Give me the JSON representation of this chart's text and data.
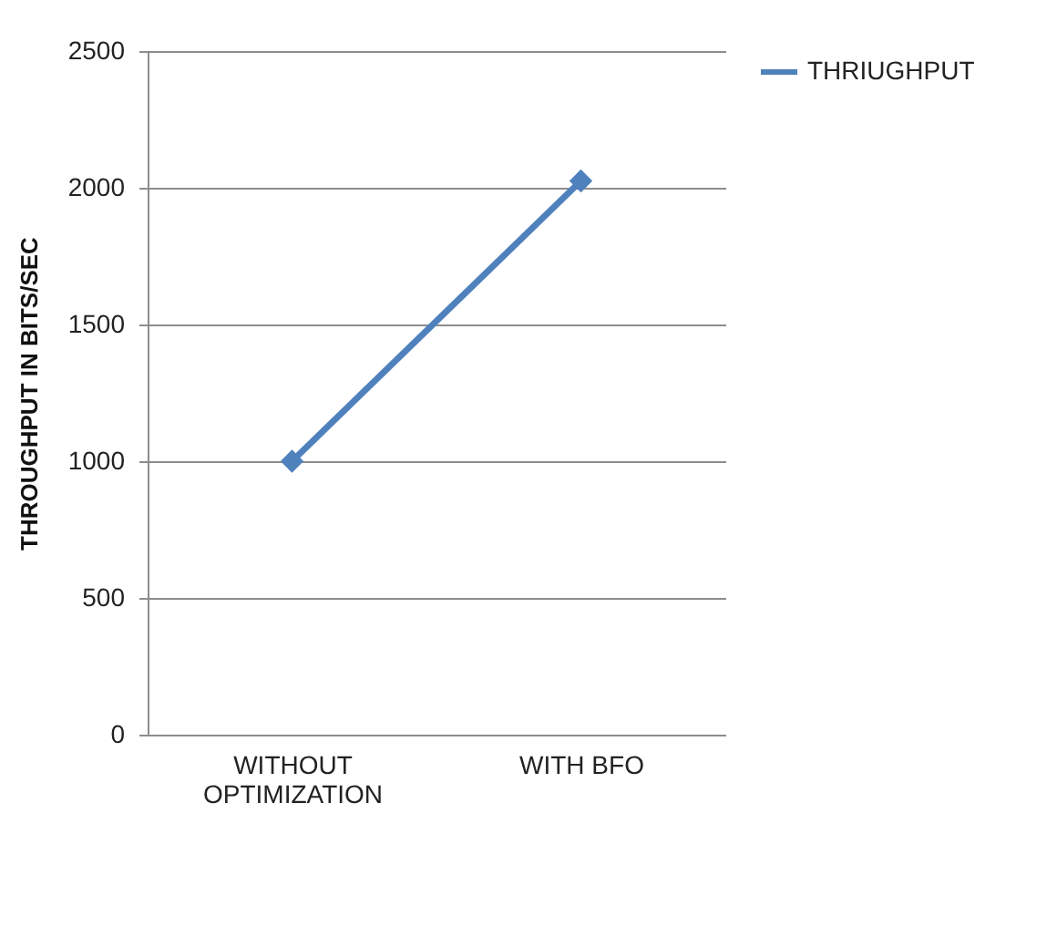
{
  "chart_data": {
    "type": "line",
    "ylabel": "THROUGHPUT IN BITS/SEC",
    "categories": [
      "WITHOUT OPTIMIZATION",
      "WITH BFO"
    ],
    "series": [
      {
        "name": "THRIUGHPUT",
        "color": "#4f81bd",
        "values": [
          1000,
          2025
        ]
      }
    ],
    "ylim": [
      0,
      2500
    ],
    "yticks": [
      0,
      500,
      1000,
      1500,
      2000,
      2500
    ],
    "grid": "y",
    "legend": "right",
    "marker": "diamond",
    "line_style": "solid"
  }
}
